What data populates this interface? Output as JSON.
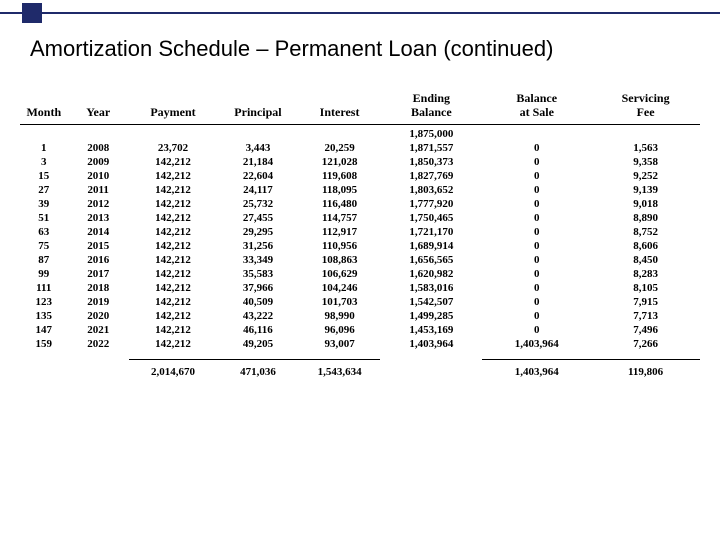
{
  "decor": {
    "accent_color": "#1f2a6a",
    "background_color": "#ffffff"
  },
  "title": "Amortization Schedule – Permanent Loan (continued)",
  "table": {
    "columns": [
      "Month",
      "Year",
      "Payment",
      "Principal",
      "Interest",
      "Ending\nBalance",
      "Balance\nat Sale",
      "Servicing\nFee"
    ],
    "initial_balance_row": [
      "",
      "",
      "",
      "",
      "",
      "1,875,000",
      "",
      ""
    ],
    "rows": [
      [
        "1",
        "2008",
        "23,702",
        "3,443",
        "20,259",
        "1,871,557",
        "0",
        "1,563"
      ],
      [
        "3",
        "2009",
        "142,212",
        "21,184",
        "121,028",
        "1,850,373",
        "0",
        "9,358"
      ],
      [
        "15",
        "2010",
        "142,212",
        "22,604",
        "119,608",
        "1,827,769",
        "0",
        "9,252"
      ],
      [
        "27",
        "2011",
        "142,212",
        "24,117",
        "118,095",
        "1,803,652",
        "0",
        "9,139"
      ],
      [
        "39",
        "2012",
        "142,212",
        "25,732",
        "116,480",
        "1,777,920",
        "0",
        "9,018"
      ],
      [
        "51",
        "2013",
        "142,212",
        "27,455",
        "114,757",
        "1,750,465",
        "0",
        "8,890"
      ],
      [
        "63",
        "2014",
        "142,212",
        "29,295",
        "112,917",
        "1,721,170",
        "0",
        "8,752"
      ],
      [
        "75",
        "2015",
        "142,212",
        "31,256",
        "110,956",
        "1,689,914",
        "0",
        "8,606"
      ],
      [
        "87",
        "2016",
        "142,212",
        "33,349",
        "108,863",
        "1,656,565",
        "0",
        "8,450"
      ],
      [
        "99",
        "2017",
        "142,212",
        "35,583",
        "106,629",
        "1,620,982",
        "0",
        "8,283"
      ],
      [
        "111",
        "2018",
        "142,212",
        "37,966",
        "104,246",
        "1,583,016",
        "0",
        "8,105"
      ],
      [
        "123",
        "2019",
        "142,212",
        "40,509",
        "101,703",
        "1,542,507",
        "0",
        "7,915"
      ],
      [
        "135",
        "2020",
        "142,212",
        "43,222",
        "98,990",
        "1,499,285",
        "0",
        "7,713"
      ],
      [
        "147",
        "2021",
        "142,212",
        "46,116",
        "96,096",
        "1,453,169",
        "0",
        "7,496"
      ],
      [
        "159",
        "2022",
        "142,212",
        "49,205",
        "93,007",
        "1,403,964",
        "1,403,964",
        "7,266"
      ]
    ],
    "totals": [
      "",
      "",
      "2,014,670",
      "471,036",
      "1,543,634",
      "",
      "1,403,964",
      "119,806"
    ]
  }
}
